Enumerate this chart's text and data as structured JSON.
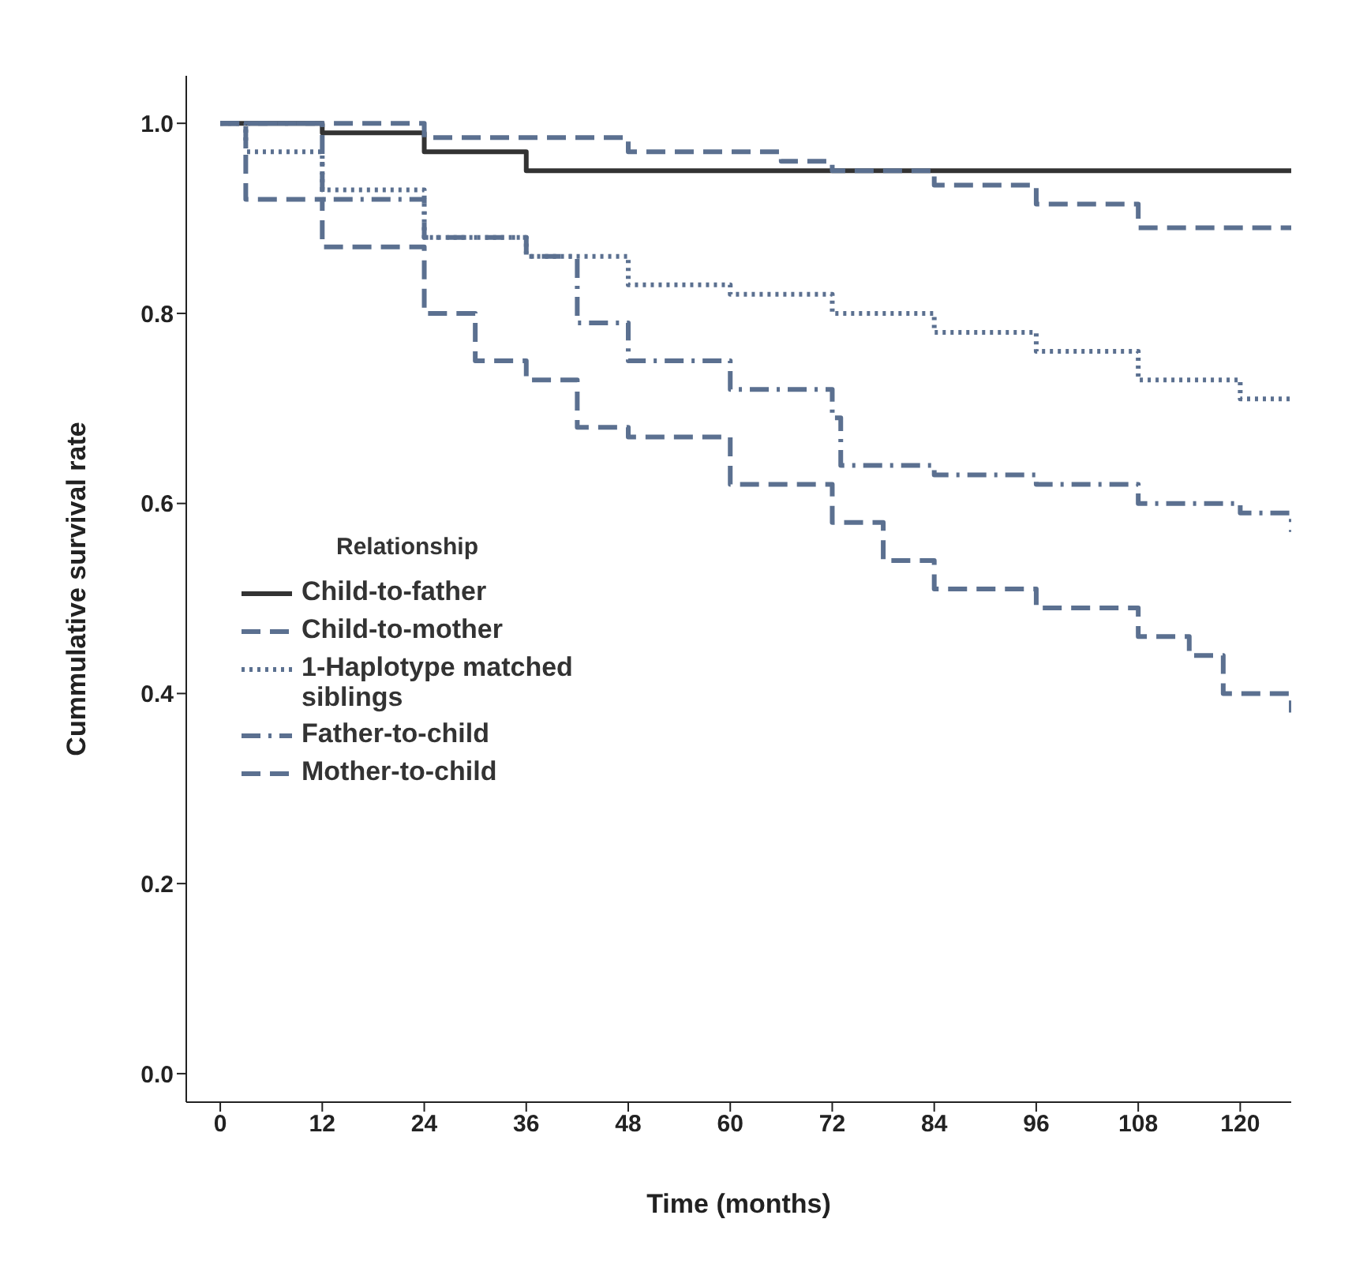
{
  "chart_data": {
    "type": "step",
    "xlabel": "Time (months)",
    "ylabel": "Cummulative survival rate",
    "legend_title": "Relationship",
    "legend": "left",
    "marker": "none",
    "xlim": [
      -4,
      126
    ],
    "xticks": [
      0,
      12,
      24,
      36,
      48,
      60,
      72,
      84,
      96,
      108,
      120
    ],
    "ylim": [
      -0.03,
      1.05
    ],
    "yticks": [
      {
        "value": 0,
        "label": "0.0"
      },
      {
        "value": 0.2,
        "label": "0.2"
      },
      {
        "value": 0.4,
        "label": "0.4"
      },
      {
        "value": 0.6,
        "label": "0.6"
      },
      {
        "value": 0.8,
        "label": "0.8"
      },
      {
        "value": 1,
        "label": "1.0"
      }
    ],
    "series": [
      {
        "name": "Child-to-father",
        "color": "#333333",
        "line_style": "solid",
        "x": [
          0,
          12,
          24,
          36,
          60,
          90,
          126
        ],
        "values": [
          1,
          0.99,
          0.97,
          0.95,
          0.95,
          0.95,
          0.95
        ]
      },
      {
        "name": "Child-to-mother",
        "color": "#5b7090",
        "line_style": "dashed",
        "x": [
          0,
          24,
          48,
          66,
          72,
          84,
          96,
          108,
          126
        ],
        "values": [
          1,
          0.985,
          0.97,
          0.96,
          0.95,
          0.935,
          0.915,
          0.89,
          0.89
        ]
      },
      {
        "name": "1-Haplotype matched siblings",
        "color": "#5b7090",
        "line_style": "dotted",
        "x": [
          0,
          3,
          12,
          24,
          36,
          48,
          60,
          72,
          84,
          96,
          108,
          120,
          126
        ],
        "values": [
          1,
          0.97,
          0.93,
          0.88,
          0.86,
          0.83,
          0.82,
          0.8,
          0.78,
          0.76,
          0.73,
          0.71,
          0.71
        ]
      },
      {
        "name": "Father-to-child",
        "color": "#5b7090",
        "line_style": "dashdot",
        "x": [
          0,
          12,
          24,
          36,
          42,
          48,
          60,
          72,
          73,
          84,
          96,
          108,
          120,
          126
        ],
        "values": [
          1,
          0.92,
          0.88,
          0.86,
          0.79,
          0.75,
          0.72,
          0.69,
          0.64,
          0.63,
          0.62,
          0.6,
          0.59,
          0.57
        ]
      },
      {
        "name": "Mother-to-child",
        "color": "#5b7090",
        "line_style": "dashed",
        "x": [
          0,
          3,
          12,
          24,
          30,
          36,
          42,
          48,
          60,
          72,
          78,
          84,
          96,
          108,
          114,
          118,
          126
        ],
        "values": [
          1,
          0.92,
          0.87,
          0.8,
          0.75,
          0.73,
          0.68,
          0.67,
          0.62,
          0.58,
          0.54,
          0.51,
          0.49,
          0.46,
          0.44,
          0.4,
          0.38
        ]
      }
    ]
  }
}
